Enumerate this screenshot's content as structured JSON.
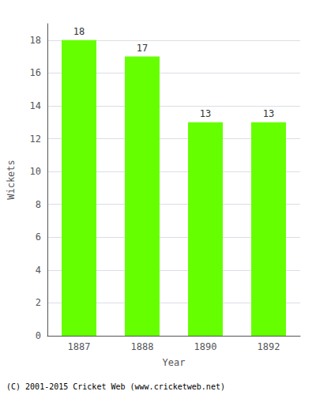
{
  "chart_data": {
    "type": "bar",
    "categories": [
      "1887",
      "1888",
      "1890",
      "1892"
    ],
    "values": [
      18,
      17,
      13,
      13
    ],
    "color": "#66ff00",
    "xlabel": "Year",
    "ylabel": "Wickets",
    "ylim": [
      0,
      19
    ],
    "yticks": [
      0,
      2,
      4,
      6,
      8,
      10,
      12,
      14,
      16,
      18
    ],
    "grid": true,
    "data_labels": true,
    "annotations": [
      "(C) 2001-2015 Cricket Web (www.cricketweb.net)"
    ]
  }
}
